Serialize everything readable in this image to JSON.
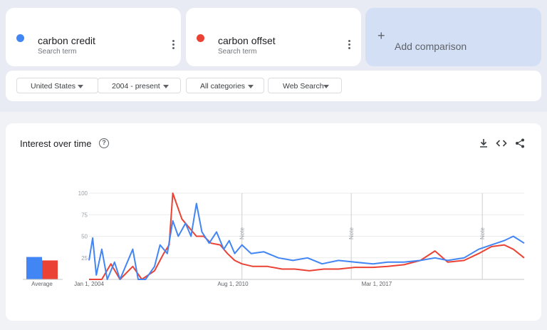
{
  "terms": [
    {
      "name": "carbon credit",
      "sub": "Search term",
      "color": "#4285f4"
    },
    {
      "name": "carbon offset",
      "sub": "Search term",
      "color": "#ea4335"
    }
  ],
  "add_comparison": {
    "label": "Add comparison",
    "icon": "plus-icon"
  },
  "filters": {
    "region": "United States",
    "time": "2004 - present",
    "category": "All categories",
    "property": "Web Search"
  },
  "chart": {
    "title": "Interest over time",
    "average_label": "Average",
    "note_label": "Note",
    "icons": [
      "help-icon",
      "download-icon",
      "embed-icon",
      "share-icon"
    ]
  },
  "chart_data": {
    "type": "line",
    "y_ticks": [
      100,
      75,
      50,
      25
    ],
    "ylim": [
      0,
      100
    ],
    "x_tick_labels": [
      "Jan 1, 2004",
      "Aug 1, 2010",
      "Mar 1, 2017"
    ],
    "x_tick_dates": [
      "2004-01",
      "2010-08",
      "2017-03"
    ],
    "x_range": [
      "2004-01",
      "2023-12"
    ],
    "notes_at": [
      "2011-01",
      "2016-01",
      "2022-01"
    ],
    "averages": [
      {
        "name": "carbon credit",
        "value": 26
      },
      {
        "name": "carbon offset",
        "value": 22
      }
    ],
    "series": [
      {
        "name": "carbon credit",
        "color": "#4285f4",
        "points": [
          [
            "2004-01",
            22
          ],
          [
            "2004-03",
            48
          ],
          [
            "2004-05",
            5
          ],
          [
            "2004-08",
            35
          ],
          [
            "2004-11",
            0
          ],
          [
            "2005-03",
            20
          ],
          [
            "2005-06",
            0
          ],
          [
            "2006-01",
            35
          ],
          [
            "2006-04",
            0
          ],
          [
            "2006-08",
            0
          ],
          [
            "2007-01",
            15
          ],
          [
            "2007-04",
            40
          ],
          [
            "2007-08",
            30
          ],
          [
            "2007-11",
            68
          ],
          [
            "2008-02",
            50
          ],
          [
            "2008-06",
            65
          ],
          [
            "2008-09",
            50
          ],
          [
            "2008-12",
            88
          ],
          [
            "2009-03",
            55
          ],
          [
            "2009-07",
            42
          ],
          [
            "2009-11",
            55
          ],
          [
            "2010-03",
            35
          ],
          [
            "2010-06",
            45
          ],
          [
            "2010-09",
            30
          ],
          [
            "2011-01",
            40
          ],
          [
            "2011-06",
            30
          ],
          [
            "2012-01",
            32
          ],
          [
            "2012-09",
            25
          ],
          [
            "2013-05",
            22
          ],
          [
            "2014-01",
            25
          ],
          [
            "2014-09",
            18
          ],
          [
            "2015-06",
            22
          ],
          [
            "2016-03",
            20
          ],
          [
            "2017-01",
            18
          ],
          [
            "2017-09",
            20
          ],
          [
            "2018-06",
            20
          ],
          [
            "2019-03",
            22
          ],
          [
            "2019-11",
            25
          ],
          [
            "2020-06",
            22
          ],
          [
            "2021-03",
            25
          ],
          [
            "2021-11",
            35
          ],
          [
            "2022-06",
            40
          ],
          [
            "2023-01",
            45
          ],
          [
            "2023-06",
            50
          ],
          [
            "2023-12",
            42
          ]
        ]
      },
      {
        "name": "carbon offset",
        "color": "#ea4335",
        "points": [
          [
            "2004-01",
            0
          ],
          [
            "2004-08",
            0
          ],
          [
            "2005-01",
            18
          ],
          [
            "2005-06",
            0
          ],
          [
            "2006-01",
            15
          ],
          [
            "2006-06",
            0
          ],
          [
            "2007-01",
            10
          ],
          [
            "2007-06",
            30
          ],
          [
            "2007-09",
            40
          ],
          [
            "2007-11",
            100
          ],
          [
            "2008-01",
            88
          ],
          [
            "2008-04",
            70
          ],
          [
            "2008-08",
            60
          ],
          [
            "2008-12",
            50
          ],
          [
            "2009-04",
            50
          ],
          [
            "2009-08",
            42
          ],
          [
            "2010-01",
            40
          ],
          [
            "2010-05",
            30
          ],
          [
            "2010-09",
            22
          ],
          [
            "2011-01",
            18
          ],
          [
            "2011-07",
            15
          ],
          [
            "2012-03",
            15
          ],
          [
            "2012-11",
            12
          ],
          [
            "2013-06",
            12
          ],
          [
            "2014-02",
            10
          ],
          [
            "2014-10",
            12
          ],
          [
            "2015-06",
            12
          ],
          [
            "2016-03",
            14
          ],
          [
            "2017-01",
            14
          ],
          [
            "2017-09",
            15
          ],
          [
            "2018-06",
            17
          ],
          [
            "2019-03",
            22
          ],
          [
            "2019-11",
            33
          ],
          [
            "2020-06",
            20
          ],
          [
            "2021-03",
            22
          ],
          [
            "2021-11",
            30
          ],
          [
            "2022-06",
            38
          ],
          [
            "2023-01",
            40
          ],
          [
            "2023-06",
            35
          ],
          [
            "2023-12",
            25
          ]
        ]
      }
    ]
  }
}
